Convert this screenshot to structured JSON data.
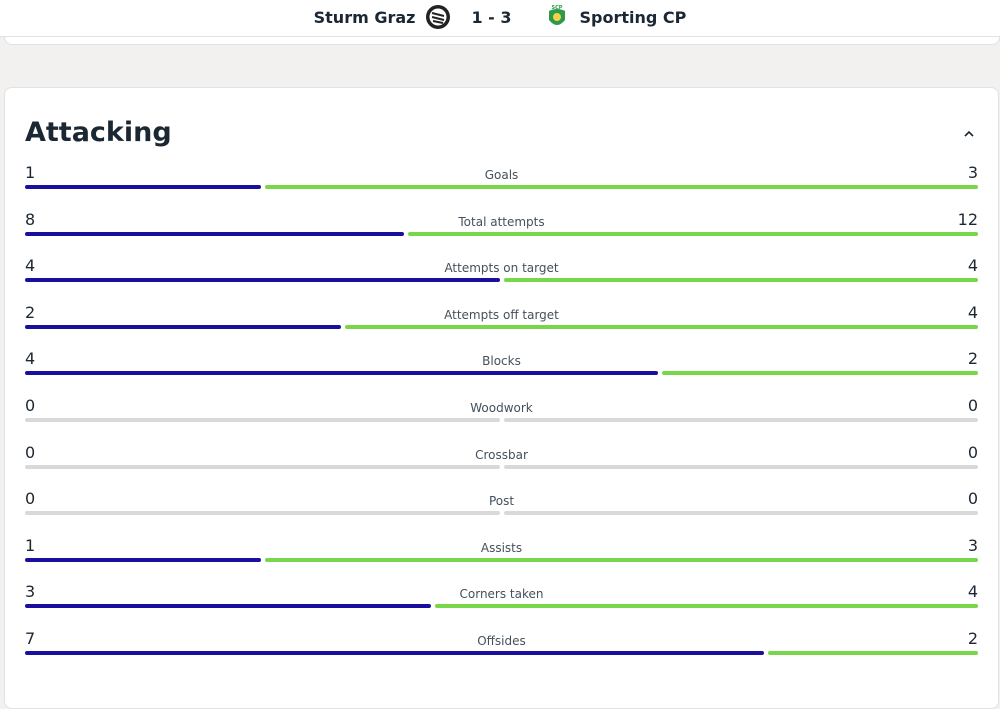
{
  "header": {
    "home_team": "Sturm Graz",
    "score": "1 - 3",
    "away_team": "Sporting CP"
  },
  "colors": {
    "home": "#1a0f9c",
    "away": "#78d64b",
    "empty": "#d9d9d9"
  },
  "section": {
    "title": "Attacking",
    "collapse_icon": "chevron-up-icon"
  },
  "stats": [
    {
      "label": "Goals",
      "home": 1,
      "away": 3
    },
    {
      "label": "Total attempts",
      "home": 8,
      "away": 12
    },
    {
      "label": "Attempts on target",
      "home": 4,
      "away": 4
    },
    {
      "label": "Attempts off target",
      "home": 2,
      "away": 4
    },
    {
      "label": "Blocks",
      "home": 4,
      "away": 2
    },
    {
      "label": "Woodwork",
      "home": 0,
      "away": 0
    },
    {
      "label": "Crossbar",
      "home": 0,
      "away": 0
    },
    {
      "label": "Post",
      "home": 0,
      "away": 0
    },
    {
      "label": "Assists",
      "home": 1,
      "away": 3
    },
    {
      "label": "Corners taken",
      "home": 3,
      "away": 4
    },
    {
      "label": "Offsides",
      "home": 7,
      "away": 2
    }
  ]
}
